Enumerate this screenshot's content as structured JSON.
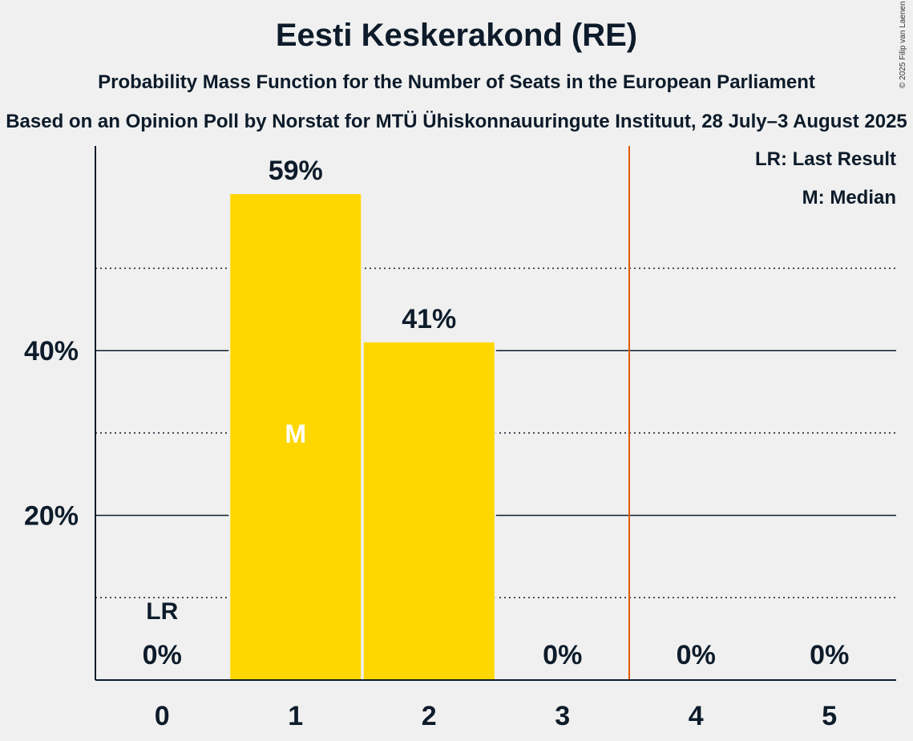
{
  "title": "Eesti Keskerakond (RE)",
  "subtitle": "Probability Mass Function for the Number of Seats in the European Parliament",
  "source": "Based on an Opinion Poll by Norstat for MTÜ Ühiskonnauuringute Instituut, 28 July–3 August 2025",
  "copyright": "© 2025 Filip van Laenen",
  "legend": {
    "last_result": "LR: Last Result",
    "median": "M: Median"
  },
  "colors": {
    "bar": "#ffd700",
    "last_result_line": "#e05c00",
    "background": "#f0f0f0",
    "text": "#0d1b2a"
  },
  "chart_data": {
    "type": "bar",
    "categories": [
      "0",
      "1",
      "2",
      "3",
      "4",
      "5"
    ],
    "values": [
      0,
      59,
      41,
      0,
      0,
      0
    ],
    "data_labels": [
      "0%",
      "59%",
      "41%",
      "0%",
      "0%",
      "0%"
    ],
    "ylim": [
      0,
      65
    ],
    "yticks": [
      20,
      40
    ],
    "ytick_labels": [
      "20%",
      "40%"
    ],
    "minor_gridlines": [
      10,
      30,
      50
    ],
    "median_category": "1",
    "median_label": "M",
    "last_result_category": "0",
    "last_result_label": "LR",
    "majority_line_between": [
      "3",
      "4"
    ],
    "xlabel": "",
    "ylabel": ""
  }
}
